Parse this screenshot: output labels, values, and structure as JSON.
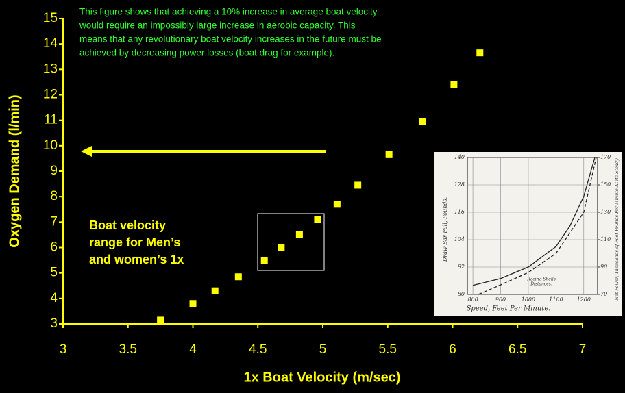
{
  "chart_data": [
    {
      "type": "scatter",
      "xlabel": "1x Boat Velocity (m/sec)",
      "ylabel": "Oxygen  Demand (l/min)",
      "note_lines": [
        "This figure shows that achieving a 10% increase in average boat velocity",
        "would require an impossibly large increase in aerobic capacity.  This",
        "means that any revolutionary boat velocity increases in the future must be",
        "achieved by decreasing power losses (boat drag for example)."
      ],
      "label_lines": [
        "Boat velocity",
        "range for Men’s",
        "and women’s 1x"
      ],
      "x": [
        3.75,
        4.0,
        4.17,
        4.35,
        4.55,
        4.68,
        4.82,
        4.96,
        5.11,
        5.27,
        5.51,
        5.77,
        6.01,
        6.21
      ],
      "values": [
        3.15,
        3.8,
        4.3,
        4.85,
        5.5,
        6.0,
        6.5,
        7.1,
        7.7,
        8.45,
        9.65,
        10.95,
        12.4,
        13.65
      ],
      "color": "#ffff00",
      "xlim": [
        3,
        7
      ],
      "xticks": [
        3,
        3.5,
        4,
        4.5,
        5,
        5.5,
        6,
        6.5,
        7
      ],
      "ylim": [
        3,
        15
      ],
      "yticks": [
        3,
        4,
        5,
        6,
        7,
        8,
        9,
        10,
        11,
        12,
        13,
        14,
        15
      ]
    },
    {
      "type": "line",
      "xlabel": "Speed, Feet Per Minute.",
      "ylabel": "Draw Bar Pull,-Pounds.",
      "y2label": "Net Power, Thousands of Foot Pounds Per Minute At its Steady",
      "annotation_lines": [
        "Racing Shells",
        "Distances."
      ],
      "xlim": [
        780,
        1250
      ],
      "xticks": [
        800,
        900,
        1000,
        1100,
        1200
      ],
      "ylim": [
        80,
        140
      ],
      "yticks": [
        80,
        92,
        104,
        116,
        128,
        140
      ],
      "y2lim": [
        70,
        170
      ],
      "y2ticks": [
        70,
        90,
        110,
        130,
        150,
        170
      ],
      "grid": true,
      "series": [
        {
          "color": "#222222",
          "x": [
            800,
            900,
            1000,
            1100,
            1150,
            1200,
            1240
          ],
          "values": [
            84,
            87,
            92,
            101,
            110,
            123,
            140
          ]
        },
        {
          "color": "#222222",
          "dashed": true,
          "axis": "y2",
          "x": [
            820,
            900,
            1000,
            1100,
            1200,
            1245
          ],
          "values": [
            70,
            77,
            86,
            100,
            130,
            170
          ]
        }
      ]
    }
  ]
}
